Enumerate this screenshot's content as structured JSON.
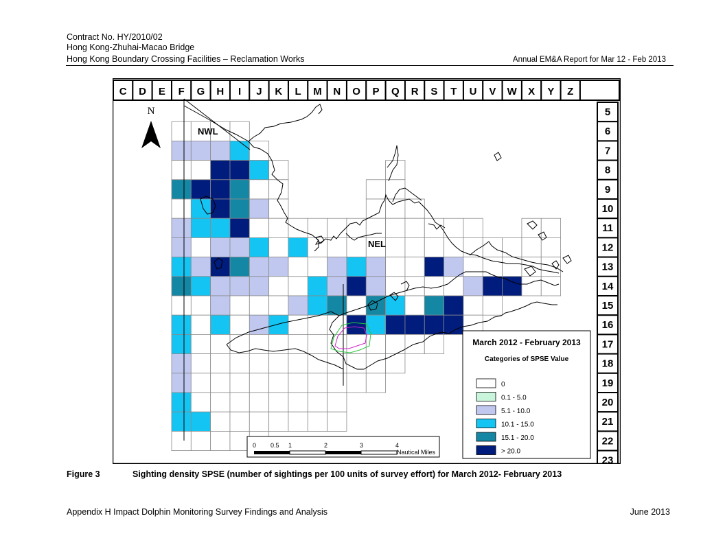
{
  "header": {
    "line1": "Contract No. HY/2010/02",
    "line2": "Hong Kong-Zhuhai-Macao Bridge",
    "line3": "Hong Kong Boundary Crossing Facilities – Reclamation Works",
    "right": "Annual EM&A Report for Mar 12 - Feb 2013"
  },
  "map": {
    "columns": [
      "C",
      "D",
      "E",
      "F",
      "G",
      "H",
      "I",
      "J",
      "K",
      "L",
      "M",
      "N",
      "O",
      "P",
      "Q",
      "R",
      "S",
      "T",
      "U",
      "V",
      "W",
      "X",
      "Y",
      "Z"
    ],
    "rows": [
      "5",
      "6",
      "7",
      "8",
      "9",
      "10",
      "11",
      "12",
      "13",
      "14",
      "15",
      "16",
      "17",
      "18",
      "19",
      "20",
      "21",
      "22",
      "23"
    ],
    "north_label": "N",
    "area_labels": {
      "nwl": "NWL",
      "nel": "NEL"
    },
    "scale_bar": {
      "ticks": [
        "0",
        "0.5",
        "1",
        "2",
        "3",
        "4"
      ],
      "unit": "Nautical Miles"
    },
    "legend": {
      "title": "March 2012 - February 2013",
      "subtitle": "Categories of SPSE Value",
      "items": [
        {
          "label": "0",
          "color": "#ffffff"
        },
        {
          "label": "0.1 - 5.0",
          "color": "#c8f5dc"
        },
        {
          "label": "5.1 - 10.0",
          "color": "#c0c8f0"
        },
        {
          "label": "10.1 - 15.0",
          "color": "#14c4f2"
        },
        {
          "label": "15.1 - 20.0",
          "color": "#1487a4"
        },
        {
          "label": "> 20.0",
          "color": "#001c7c"
        }
      ]
    },
    "grid_cells": [
      {
        "col": "F",
        "row": "6",
        "cat": 0
      },
      {
        "col": "G",
        "row": "6",
        "cat": 0
      },
      {
        "col": "H",
        "row": "6",
        "cat": 0
      },
      {
        "col": "I",
        "row": "6",
        "cat": 0
      },
      {
        "col": "F",
        "row": "7",
        "cat": 2
      },
      {
        "col": "G",
        "row": "7",
        "cat": 2
      },
      {
        "col": "H",
        "row": "7",
        "cat": 2
      },
      {
        "col": "I",
        "row": "7",
        "cat": 3
      },
      {
        "col": "J",
        "row": "7",
        "cat": 0
      },
      {
        "col": "F",
        "row": "8",
        "cat": 0
      },
      {
        "col": "G",
        "row": "8",
        "cat": 0
      },
      {
        "col": "H",
        "row": "8",
        "cat": 5
      },
      {
        "col": "I",
        "row": "8",
        "cat": 5
      },
      {
        "col": "J",
        "row": "8",
        "cat": 3
      },
      {
        "col": "K",
        "row": "8",
        "cat": 0
      },
      {
        "col": "Q",
        "row": "8",
        "cat": 0
      },
      {
        "col": "F",
        "row": "9",
        "cat": 4
      },
      {
        "col": "G",
        "row": "9",
        "cat": 5
      },
      {
        "col": "H",
        "row": "9",
        "cat": 5
      },
      {
        "col": "I",
        "row": "9",
        "cat": 4
      },
      {
        "col": "J",
        "row": "9",
        "cat": 0
      },
      {
        "col": "K",
        "row": "9",
        "cat": 0
      },
      {
        "col": "P",
        "row": "9",
        "cat": 0
      },
      {
        "col": "Q",
        "row": "9",
        "cat": 0
      },
      {
        "col": "F",
        "row": "10",
        "cat": 0
      },
      {
        "col": "G",
        "row": "10",
        "cat": 3
      },
      {
        "col": "H",
        "row": "10",
        "cat": 5
      },
      {
        "col": "I",
        "row": "10",
        "cat": 4
      },
      {
        "col": "J",
        "row": "10",
        "cat": 2
      },
      {
        "col": "K",
        "row": "10",
        "cat": 0
      },
      {
        "col": "P",
        "row": "10",
        "cat": 0
      },
      {
        "col": "Q",
        "row": "10",
        "cat": 0
      },
      {
        "col": "R",
        "row": "10",
        "cat": 0
      },
      {
        "col": "F",
        "row": "11",
        "cat": 2
      },
      {
        "col": "G",
        "row": "11",
        "cat": 3
      },
      {
        "col": "H",
        "row": "11",
        "cat": 3
      },
      {
        "col": "I",
        "row": "11",
        "cat": 5
      },
      {
        "col": "J",
        "row": "11",
        "cat": 0
      },
      {
        "col": "K",
        "row": "11",
        "cat": 0
      },
      {
        "col": "L",
        "row": "11",
        "cat": 0
      },
      {
        "col": "M",
        "row": "11",
        "cat": 0
      },
      {
        "col": "N",
        "row": "11",
        "cat": 0
      },
      {
        "col": "O",
        "row": "11",
        "cat": 0
      },
      {
        "col": "P",
        "row": "11",
        "cat": 0
      },
      {
        "col": "Q",
        "row": "11",
        "cat": 0
      },
      {
        "col": "R",
        "row": "11",
        "cat": 0
      },
      {
        "col": "S",
        "row": "11",
        "cat": 0
      },
      {
        "col": "T",
        "row": "11",
        "cat": 0
      },
      {
        "col": "U",
        "row": "11",
        "cat": 0
      },
      {
        "col": "X",
        "row": "11",
        "cat": 0
      },
      {
        "col": "Y",
        "row": "11",
        "cat": 0
      },
      {
        "col": "F",
        "row": "12",
        "cat": 2
      },
      {
        "col": "G",
        "row": "12",
        "cat": 0
      },
      {
        "col": "H",
        "row": "12",
        "cat": 2
      },
      {
        "col": "I",
        "row": "12",
        "cat": 2
      },
      {
        "col": "J",
        "row": "12",
        "cat": 3
      },
      {
        "col": "K",
        "row": "12",
        "cat": 0
      },
      {
        "col": "L",
        "row": "12",
        "cat": 3
      },
      {
        "col": "M",
        "row": "12",
        "cat": 0
      },
      {
        "col": "N",
        "row": "12",
        "cat": 0
      },
      {
        "col": "O",
        "row": "12",
        "cat": 0
      },
      {
        "col": "P",
        "row": "12",
        "cat": 0
      },
      {
        "col": "Q",
        "row": "12",
        "cat": 0
      },
      {
        "col": "R",
        "row": "12",
        "cat": 0
      },
      {
        "col": "S",
        "row": "12",
        "cat": 0
      },
      {
        "col": "T",
        "row": "12",
        "cat": 0
      },
      {
        "col": "U",
        "row": "12",
        "cat": 0
      },
      {
        "col": "V",
        "row": "12",
        "cat": 0
      },
      {
        "col": "W",
        "row": "12",
        "cat": 0
      },
      {
        "col": "X",
        "row": "12",
        "cat": 0
      },
      {
        "col": "Y",
        "row": "12",
        "cat": 0
      },
      {
        "col": "F",
        "row": "13",
        "cat": 3
      },
      {
        "col": "G",
        "row": "13",
        "cat": 2
      },
      {
        "col": "H",
        "row": "13",
        "cat": 5
      },
      {
        "col": "I",
        "row": "13",
        "cat": 4
      },
      {
        "col": "J",
        "row": "13",
        "cat": 2
      },
      {
        "col": "K",
        "row": "13",
        "cat": 2
      },
      {
        "col": "L",
        "row": "13",
        "cat": 0
      },
      {
        "col": "M",
        "row": "13",
        "cat": 0
      },
      {
        "col": "N",
        "row": "13",
        "cat": 2
      },
      {
        "col": "O",
        "row": "13",
        "cat": 3
      },
      {
        "col": "P",
        "row": "13",
        "cat": 2
      },
      {
        "col": "Q",
        "row": "13",
        "cat": 0
      },
      {
        "col": "R",
        "row": "13",
        "cat": 0
      },
      {
        "col": "S",
        "row": "13",
        "cat": 5
      },
      {
        "col": "T",
        "row": "13",
        "cat": 2
      },
      {
        "col": "U",
        "row": "13",
        "cat": 0
      },
      {
        "col": "V",
        "row": "13",
        "cat": 0
      },
      {
        "col": "W",
        "row": "13",
        "cat": 0
      },
      {
        "col": "X",
        "row": "13",
        "cat": 0
      },
      {
        "col": "Y",
        "row": "13",
        "cat": 0
      },
      {
        "col": "F",
        "row": "14",
        "cat": 4
      },
      {
        "col": "G",
        "row": "14",
        "cat": 3
      },
      {
        "col": "H",
        "row": "14",
        "cat": 2
      },
      {
        "col": "I",
        "row": "14",
        "cat": 2
      },
      {
        "col": "J",
        "row": "14",
        "cat": 2
      },
      {
        "col": "K",
        "row": "14",
        "cat": 0
      },
      {
        "col": "L",
        "row": "14",
        "cat": 0
      },
      {
        "col": "M",
        "row": "14",
        "cat": 3
      },
      {
        "col": "N",
        "row": "14",
        "cat": 2
      },
      {
        "col": "O",
        "row": "14",
        "cat": 5
      },
      {
        "col": "P",
        "row": "14",
        "cat": 2
      },
      {
        "col": "Q",
        "row": "14",
        "cat": 0
      },
      {
        "col": "R",
        "row": "14",
        "cat": 0
      },
      {
        "col": "S",
        "row": "14",
        "cat": 0
      },
      {
        "col": "T",
        "row": "14",
        "cat": 0
      },
      {
        "col": "U",
        "row": "14",
        "cat": 2
      },
      {
        "col": "V",
        "row": "14",
        "cat": 5
      },
      {
        "col": "W",
        "row": "14",
        "cat": 5
      },
      {
        "col": "X",
        "row": "14",
        "cat": 0
      },
      {
        "col": "Y",
        "row": "14",
        "cat": 0
      },
      {
        "col": "F",
        "row": "15",
        "cat": 0
      },
      {
        "col": "G",
        "row": "15",
        "cat": 0
      },
      {
        "col": "H",
        "row": "15",
        "cat": 2
      },
      {
        "col": "I",
        "row": "15",
        "cat": 0
      },
      {
        "col": "J",
        "row": "15",
        "cat": 0
      },
      {
        "col": "K",
        "row": "15",
        "cat": 0
      },
      {
        "col": "L",
        "row": "15",
        "cat": 2
      },
      {
        "col": "M",
        "row": "15",
        "cat": 3
      },
      {
        "col": "N",
        "row": "15",
        "cat": 4
      },
      {
        "col": "O",
        "row": "15",
        "cat": 0
      },
      {
        "col": "P",
        "row": "15",
        "cat": 4
      },
      {
        "col": "Q",
        "row": "15",
        "cat": 3
      },
      {
        "col": "R",
        "row": "15",
        "cat": 0
      },
      {
        "col": "S",
        "row": "15",
        "cat": 4
      },
      {
        "col": "T",
        "row": "15",
        "cat": 5
      },
      {
        "col": "U",
        "row": "15",
        "cat": 0
      },
      {
        "col": "V",
        "row": "15",
        "cat": 0
      },
      {
        "col": "F",
        "row": "16",
        "cat": 3
      },
      {
        "col": "G",
        "row": "16",
        "cat": 0
      },
      {
        "col": "H",
        "row": "16",
        "cat": 3
      },
      {
        "col": "I",
        "row": "16",
        "cat": 0
      },
      {
        "col": "J",
        "row": "16",
        "cat": 2
      },
      {
        "col": "K",
        "row": "16",
        "cat": 3
      },
      {
        "col": "L",
        "row": "16",
        "cat": 0
      },
      {
        "col": "M",
        "row": "16",
        "cat": 0
      },
      {
        "col": "N",
        "row": "16",
        "cat": 0
      },
      {
        "col": "O",
        "row": "16",
        "cat": 5
      },
      {
        "col": "P",
        "row": "16",
        "cat": 3
      },
      {
        "col": "Q",
        "row": "16",
        "cat": 5
      },
      {
        "col": "R",
        "row": "16",
        "cat": 5
      },
      {
        "col": "S",
        "row": "16",
        "cat": 5
      },
      {
        "col": "T",
        "row": "16",
        "cat": 5
      },
      {
        "col": "U",
        "row": "16",
        "cat": 0
      },
      {
        "col": "F",
        "row": "17",
        "cat": 3
      },
      {
        "col": "G",
        "row": "17",
        "cat": 0
      },
      {
        "col": "H",
        "row": "17",
        "cat": 0
      },
      {
        "col": "I",
        "row": "17",
        "cat": 0
      },
      {
        "col": "J",
        "row": "17",
        "cat": 0
      },
      {
        "col": "K",
        "row": "17",
        "cat": 0
      },
      {
        "col": "L",
        "row": "17",
        "cat": 0
      },
      {
        "col": "M",
        "row": "17",
        "cat": 0
      },
      {
        "col": "N",
        "row": "17",
        "cat": 0
      },
      {
        "col": "O",
        "row": "17",
        "cat": 0
      },
      {
        "col": "P",
        "row": "17",
        "cat": 0
      },
      {
        "col": "Q",
        "row": "17",
        "cat": 0
      },
      {
        "col": "R",
        "row": "17",
        "cat": 0
      },
      {
        "col": "S",
        "row": "17",
        "cat": 0
      },
      {
        "col": "F",
        "row": "18",
        "cat": 2
      },
      {
        "col": "G",
        "row": "18",
        "cat": 0
      },
      {
        "col": "H",
        "row": "18",
        "cat": 0
      },
      {
        "col": "I",
        "row": "18",
        "cat": 0
      },
      {
        "col": "J",
        "row": "18",
        "cat": 0
      },
      {
        "col": "K",
        "row": "18",
        "cat": 0
      },
      {
        "col": "L",
        "row": "18",
        "cat": 0
      },
      {
        "col": "M",
        "row": "18",
        "cat": 0
      },
      {
        "col": "N",
        "row": "18",
        "cat": 0
      },
      {
        "col": "O",
        "row": "18",
        "cat": 0
      },
      {
        "col": "P",
        "row": "18",
        "cat": 0
      },
      {
        "col": "Q",
        "row": "18",
        "cat": 0
      },
      {
        "col": "F",
        "row": "19",
        "cat": 2
      },
      {
        "col": "G",
        "row": "19",
        "cat": 0
      },
      {
        "col": "H",
        "row": "19",
        "cat": 0
      },
      {
        "col": "I",
        "row": "19",
        "cat": 0
      },
      {
        "col": "J",
        "row": "19",
        "cat": 0
      },
      {
        "col": "K",
        "row": "19",
        "cat": 0
      },
      {
        "col": "L",
        "row": "19",
        "cat": 0
      },
      {
        "col": "M",
        "row": "19",
        "cat": 0
      },
      {
        "col": "N",
        "row": "19",
        "cat": 0
      },
      {
        "col": "O",
        "row": "19",
        "cat": 0
      },
      {
        "col": "P",
        "row": "19",
        "cat": 0
      },
      {
        "col": "F",
        "row": "20",
        "cat": 3
      },
      {
        "col": "G",
        "row": "20",
        "cat": 0
      },
      {
        "col": "H",
        "row": "20",
        "cat": 0
      },
      {
        "col": "I",
        "row": "20",
        "cat": 0
      },
      {
        "col": "J",
        "row": "20",
        "cat": 0
      },
      {
        "col": "K",
        "row": "20",
        "cat": 0
      },
      {
        "col": "L",
        "row": "20",
        "cat": 0
      },
      {
        "col": "M",
        "row": "20",
        "cat": 0
      },
      {
        "col": "N",
        "row": "20",
        "cat": 0
      },
      {
        "col": "F",
        "row": "21",
        "cat": 3
      },
      {
        "col": "G",
        "row": "21",
        "cat": 3
      },
      {
        "col": "H",
        "row": "21",
        "cat": 0
      },
      {
        "col": "I",
        "row": "21",
        "cat": 0
      },
      {
        "col": "J",
        "row": "21",
        "cat": 0
      },
      {
        "col": "K",
        "row": "21",
        "cat": 0
      },
      {
        "col": "L",
        "row": "21",
        "cat": 0
      },
      {
        "col": "M",
        "row": "21",
        "cat": 0
      },
      {
        "col": "N",
        "row": "21",
        "cat": 0
      },
      {
        "col": "F",
        "row": "22",
        "cat": 0
      },
      {
        "col": "G",
        "row": "22",
        "cat": 0
      },
      {
        "col": "H",
        "row": "22",
        "cat": 0
      },
      {
        "col": "I",
        "row": "22",
        "cat": 0
      },
      {
        "col": "J",
        "row": "22",
        "cat": 0
      }
    ]
  },
  "caption": {
    "label": "Figure 3",
    "text": "Sighting density SPSE (number of sightings per 100 units of survey effort) for March 2012- February 2013"
  },
  "footer": {
    "left": "Appendix H   Impact Dolphin Monitoring Survey Findings and Analysis",
    "right": "June 2013"
  }
}
